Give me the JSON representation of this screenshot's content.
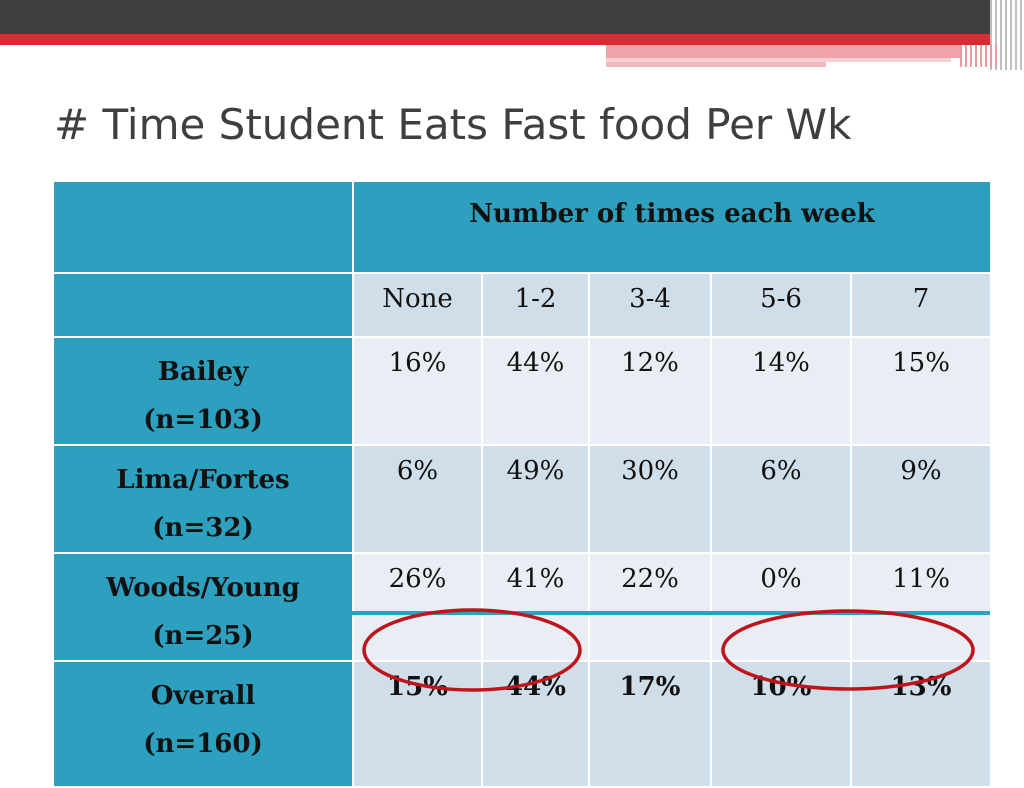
{
  "slide": {
    "title": "# Time Student Eats Fast food Per Wk"
  },
  "chart_data": {
    "type": "table",
    "title": "# Time Student Eats Fast food Per Wk",
    "header": "Number of times each week",
    "columns": [
      "None",
      "1-2",
      "3-4",
      "5-6",
      "7"
    ],
    "rows": [
      {
        "group": "Bailey",
        "n": "(n=103)",
        "values": [
          "16%",
          "44%",
          "12%",
          "14%",
          "15%"
        ]
      },
      {
        "group": "Lima/Fortes",
        "n": "(n=32)",
        "values": [
          "6%",
          "49%",
          "30%",
          "6%",
          "9%"
        ]
      },
      {
        "group": "Woods/Young",
        "n": "(n=25)",
        "values": [
          "26%",
          "41%",
          "22%",
          "0%",
          "11%"
        ]
      },
      {
        "group": "Overall",
        "n": "(n=160)",
        "values": [
          "15%",
          "44%",
          "17%",
          "10%",
          "13%"
        ]
      }
    ],
    "highlighted": [
      "15%",
      "44%",
      "10%",
      "13%"
    ],
    "colors": {
      "header": "#2ea0bf",
      "cell_light": "#e8eef4",
      "cell_dark": "#d0dee9",
      "circle": "#c0141c",
      "accent": "#d82b35"
    }
  }
}
